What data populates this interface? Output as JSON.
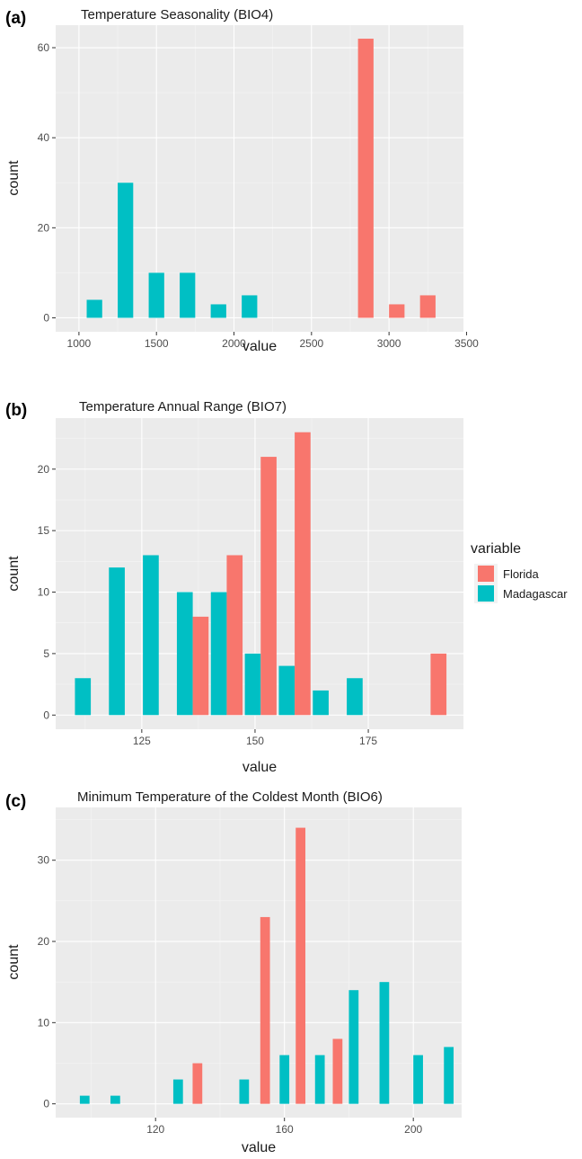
{
  "colors": {
    "Florida": "#F8766D",
    "Madagascar": "#00BFC4",
    "panel_bg": "#EBEBEB",
    "grid_major": "#FFFFFF",
    "grid_minor": "#F5F5F5"
  },
  "legend": {
    "title": "variable",
    "entries": [
      "Florida",
      "Madagascar"
    ],
    "position": "right of panel (b)"
  },
  "chart_data": [
    {
      "type": "bar",
      "panel_label": "(a)",
      "title": "Temperature Seasonality (BIO4)",
      "xlabel": "value",
      "ylabel": "count",
      "xlim": [
        850,
        3480
      ],
      "ylim": [
        -3.1,
        65
      ],
      "bin_width": 200,
      "grid": true,
      "x_ticks": [
        1000,
        1500,
        2000,
        2500,
        3000,
        3500
      ],
      "y_ticks": [
        0,
        20,
        40,
        60
      ],
      "bars": [
        {
          "series": "Madagascar",
          "x": 1100,
          "value": 4
        },
        {
          "series": "Madagascar",
          "x": 1300,
          "value": 30
        },
        {
          "series": "Madagascar",
          "x": 1500,
          "value": 10
        },
        {
          "series": "Madagascar",
          "x": 1700,
          "value": 10
        },
        {
          "series": "Madagascar",
          "x": 1900,
          "value": 3
        },
        {
          "series": "Madagascar",
          "x": 2100,
          "value": 5
        },
        {
          "series": "Florida",
          "x": 2850,
          "value": 62
        },
        {
          "series": "Florida",
          "x": 3050,
          "value": 3
        },
        {
          "series": "Florida",
          "x": 3250,
          "value": 5
        }
      ]
    },
    {
      "type": "bar",
      "panel_label": "(b)",
      "title": "Temperature Annual Range (BIO7)",
      "xlabel": "value",
      "ylabel": "count",
      "xlim": [
        106,
        196
      ],
      "ylim": [
        -1.15,
        24.15
      ],
      "bin_width": 7,
      "grid": true,
      "x_ticks": [
        125,
        150,
        175
      ],
      "y_ticks": [
        0,
        5,
        10,
        15,
        20
      ],
      "bars": [
        {
          "series": "Madagascar",
          "x": 112,
          "value": 3
        },
        {
          "series": "Madagascar",
          "x": 119.5,
          "value": 12
        },
        {
          "series": "Madagascar",
          "x": 127,
          "value": 13
        },
        {
          "series": "Madagascar",
          "x": 134.5,
          "value": 10
        },
        {
          "series": "Florida",
          "x": 138,
          "value": 8
        },
        {
          "series": "Madagascar",
          "x": 142,
          "value": 10
        },
        {
          "series": "Florida",
          "x": 145.5,
          "value": 13
        },
        {
          "series": "Madagascar",
          "x": 149.5,
          "value": 5
        },
        {
          "series": "Florida",
          "x": 153,
          "value": 21
        },
        {
          "series": "Madagascar",
          "x": 157,
          "value": 4
        },
        {
          "series": "Florida",
          "x": 160.5,
          "value": 23
        },
        {
          "series": "Madagascar",
          "x": 164.5,
          "value": 2
        },
        {
          "series": "Madagascar",
          "x": 172,
          "value": 3
        },
        {
          "series": "Florida",
          "x": 190.5,
          "value": 5
        }
      ]
    },
    {
      "type": "bar",
      "panel_label": "(c)",
      "title": "Minimum Temperature of the Coldest Month (BIO6)",
      "xlabel": "value",
      "ylabel": "count",
      "xlim": [
        89,
        215
      ],
      "ylim": [
        -1.7,
        36.5
      ],
      "bin_width": 6,
      "grid": true,
      "x_ticks": [
        120,
        160,
        200
      ],
      "y_ticks": [
        0,
        10,
        20,
        30
      ],
      "bars": [
        {
          "series": "Madagascar",
          "x": 98,
          "value": 1
        },
        {
          "series": "Madagascar",
          "x": 107.5,
          "value": 1
        },
        {
          "series": "Madagascar",
          "x": 127,
          "value": 3
        },
        {
          "series": "Florida",
          "x": 133,
          "value": 5
        },
        {
          "series": "Madagascar",
          "x": 147.5,
          "value": 3
        },
        {
          "series": "Florida",
          "x": 154,
          "value": 23
        },
        {
          "series": "Madagascar",
          "x": 160,
          "value": 6
        },
        {
          "series": "Florida",
          "x": 165,
          "value": 34
        },
        {
          "series": "Madagascar",
          "x": 171,
          "value": 6
        },
        {
          "series": "Florida",
          "x": 176.5,
          "value": 8
        },
        {
          "series": "Madagascar",
          "x": 181.5,
          "value": 14
        },
        {
          "series": "Madagascar",
          "x": 191,
          "value": 15
        },
        {
          "series": "Madagascar",
          "x": 201.5,
          "value": 6
        },
        {
          "series": "Madagascar",
          "x": 211,
          "value": 7
        }
      ]
    }
  ]
}
